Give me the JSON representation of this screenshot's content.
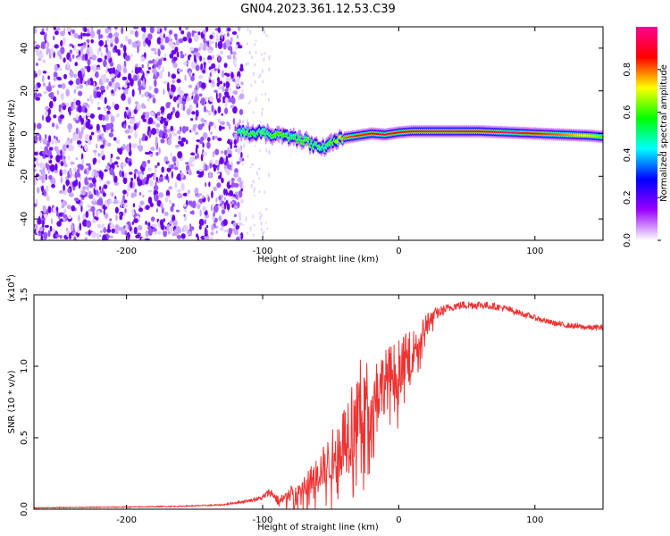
{
  "title": "GN04.2023.361.12.53.C39",
  "chart_data": [
    {
      "type": "heatmap",
      "xlabel": "Height of straight line (km)",
      "ylabel": "Frequency (Hz)",
      "xlim": [
        -268,
        150
      ],
      "ylim": [
        -50,
        50
      ],
      "xticks": [
        -200,
        -100,
        0,
        100
      ],
      "yticks": [
        -40,
        -20,
        0,
        20,
        40
      ],
      "noise_region_x": [
        -268,
        -115
      ],
      "noise_colors": [
        "#6a00f0",
        "#9955ff",
        "#c9a6ff",
        "#e3d2ff"
      ],
      "ridge": {
        "x": [
          -118,
          -110,
          -100,
          -90,
          -80,
          -70,
          -60,
          -55,
          -50,
          -40,
          -30,
          -20,
          -10,
          0,
          10,
          20,
          40,
          60,
          80,
          100,
          120,
          140,
          150
        ],
        "frequency": [
          0,
          0.5,
          0,
          -1,
          -2,
          -3,
          -6,
          -7,
          -4,
          -2,
          -1,
          0,
          -0.5,
          0.5,
          1,
          1,
          1,
          1,
          0.5,
          0,
          -0.5,
          -1,
          -1.5
        ],
        "amplitude": [
          0.4,
          0.55,
          0.45,
          0.6,
          0.5,
          0.55,
          0.5,
          0.4,
          0.55,
          0.8,
          0.85,
          0.85,
          0.9,
          0.85,
          0.9,
          0.95,
          0.95,
          0.9,
          0.95,
          0.85,
          0.8,
          0.7,
          0.6
        ]
      },
      "colorbar": {
        "label": "Normalized spectral amplitude",
        "ticks": [
          0.0,
          0.2,
          0.4,
          0.6,
          0.8
        ],
        "range": [
          0,
          1
        ],
        "stops": [
          "#ffffff",
          "#9900ff",
          "#0000ff",
          "#00ffff",
          "#00ff00",
          "#ffff00",
          "#ff0000",
          "#ff0090"
        ]
      }
    },
    {
      "type": "line",
      "xlabel": "Height of straight line (km)",
      "ylabel": "SNR (10 * v/v)",
      "scale_label": "(x10^4)",
      "xlim": [
        -268,
        150
      ],
      "ylim": [
        0,
        1.5
      ],
      "xticks": [
        -200,
        -100,
        0,
        100
      ],
      "yticks": [
        0.0,
        0.5,
        1.0,
        1.5
      ],
      "series": [
        {
          "color": "#ee3333",
          "x": [
            -268,
            -240,
            -200,
            -160,
            -130,
            -110,
            -100,
            -95,
            -92,
            -88,
            -80,
            -70,
            -60,
            -50,
            -40,
            -35,
            -30,
            -25,
            -20,
            -15,
            -10,
            -5,
            0,
            5,
            10,
            15,
            20,
            25,
            30,
            40,
            50,
            60,
            70,
            80,
            90,
            100,
            110,
            120,
            130,
            140,
            150
          ],
          "y": [
            0.01,
            0.012,
            0.015,
            0.02,
            0.03,
            0.06,
            0.08,
            0.12,
            0.1,
            0.05,
            0.1,
            0.15,
            0.25,
            0.35,
            0.5,
            0.6,
            0.7,
            0.75,
            0.8,
            0.85,
            0.9,
            0.95,
            1.0,
            1.05,
            1.1,
            1.2,
            1.3,
            1.35,
            1.38,
            1.42,
            1.43,
            1.43,
            1.42,
            1.4,
            1.37,
            1.34,
            1.31,
            1.29,
            1.28,
            1.27,
            1.27
          ],
          "noise": [
            0.003,
            0.003,
            0.003,
            0.004,
            0.005,
            0.01,
            0.02,
            0.03,
            0.03,
            0.04,
            0.06,
            0.08,
            0.12,
            0.18,
            0.25,
            0.35,
            0.35,
            0.3,
            0.25,
            0.25,
            0.22,
            0.22,
            0.2,
            0.18,
            0.15,
            0.12,
            0.08,
            0.05,
            0.04,
            0.03,
            0.03,
            0.03,
            0.025,
            0.025,
            0.02,
            0.02,
            0.02,
            0.02,
            0.02,
            0.02,
            0.02
          ]
        }
      ]
    }
  ]
}
